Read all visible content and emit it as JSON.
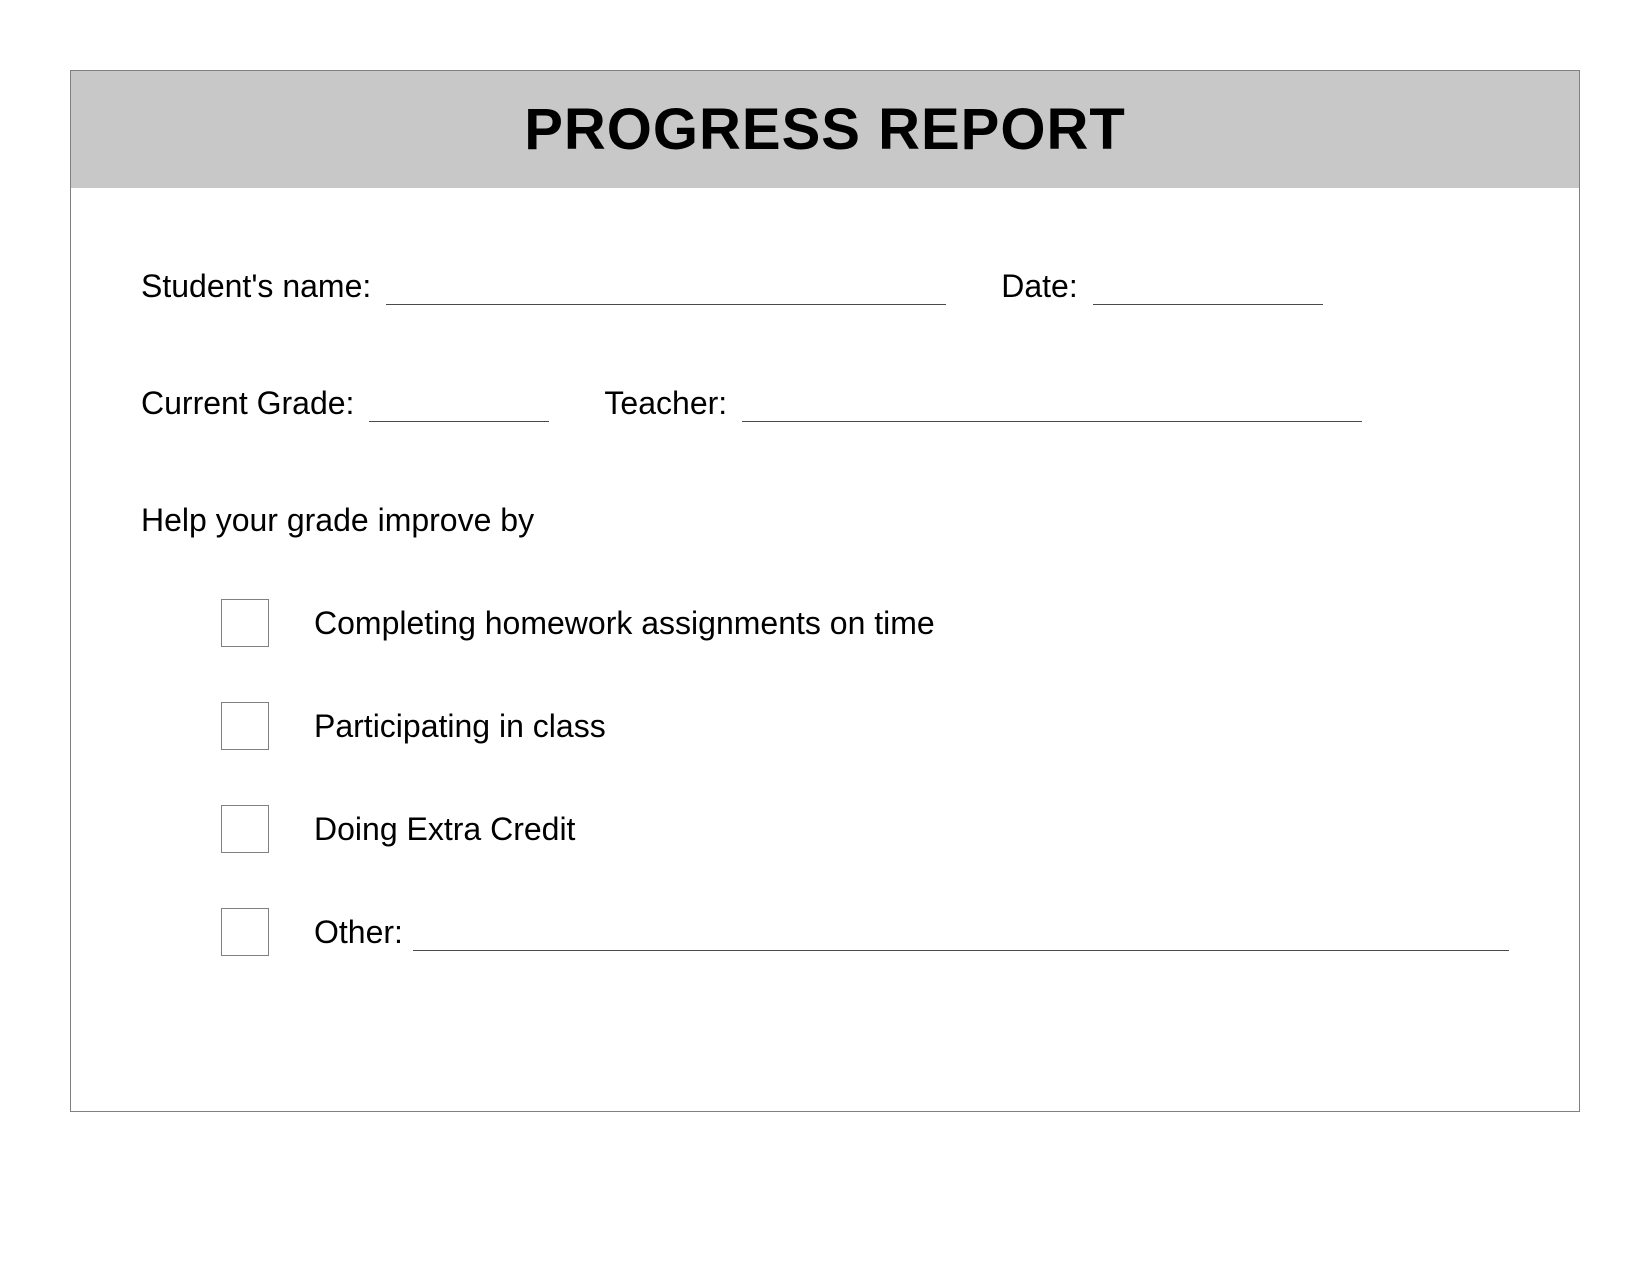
{
  "header": {
    "title": "PROGRESS REPORT",
    "background_color": "#c8c8c8",
    "title_fontsize": 58,
    "title_color": "#000000"
  },
  "fields": {
    "student_name_label": "Student's name:",
    "date_label": "Date:",
    "current_grade_label": "Current Grade:",
    "teacher_label": "Teacher:"
  },
  "section": {
    "title": "Help your grade improve by"
  },
  "checklist": {
    "items": [
      {
        "label": "Completing homework assignments on time"
      },
      {
        "label": "Participating in class"
      },
      {
        "label": "Doing Extra Credit"
      },
      {
        "label": "Other:"
      }
    ]
  },
  "styling": {
    "body_font": "Verdana",
    "body_fontsize": 32,
    "text_color": "#000000",
    "border_color": "#808080",
    "underline_color": "#4a4a4a",
    "background_color": "#ffffff"
  }
}
